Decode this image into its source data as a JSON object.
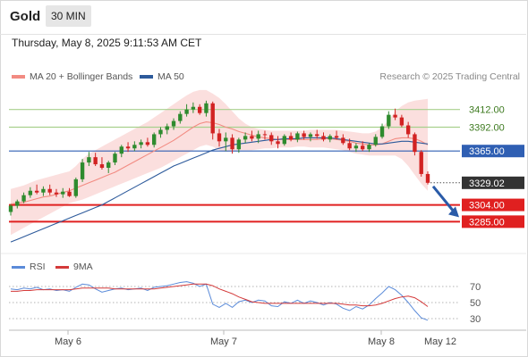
{
  "header": {
    "title": "Gold",
    "interval": "30 MIN"
  },
  "timestamp": "Thursday, May 8, 2025 9:11:53 AM CET",
  "legend": {
    "ma20_label": "MA 20 + Bollinger Bands",
    "ma50_label": "MA 50",
    "credit": "Research © 2025 Trading Central"
  },
  "rsi_legend": {
    "rsi_label": "RSI",
    "ma_label": "9MA"
  },
  "colors": {
    "ma20": "#f28b82",
    "band": "#fad2d0",
    "ma50": "#2d5a9b",
    "up": "#2e8b2e",
    "down": "#d22222",
    "support": "#e02020",
    "resistance": "#a8d08d",
    "pivot": "#2f5fb3",
    "rsi": "#5b8bd9",
    "rsi_ma": "#d43a3a"
  },
  "chart_data": [
    {
      "type": "candlestick",
      "title": "Gold",
      "interval": "30 MIN",
      "ylim": [
        3250,
        3440
      ],
      "x_ticks": [
        "May 6",
        "May 7",
        "May 8",
        "May 12"
      ],
      "candles": [
        [
          3296,
          3305,
          3292,
          3303
        ],
        [
          3303,
          3310,
          3300,
          3308
        ],
        [
          3308,
          3318,
          3306,
          3315
        ],
        [
          3315,
          3324,
          3312,
          3320
        ],
        [
          3320,
          3327,
          3316,
          3318
        ],
        [
          3318,
          3325,
          3314,
          3322
        ],
        [
          3322,
          3327,
          3315,
          3318
        ],
        [
          3318,
          3322,
          3313,
          3316
        ],
        [
          3316,
          3323,
          3312,
          3319
        ],
        [
          3319,
          3323,
          3313,
          3314
        ],
        [
          3314,
          3335,
          3312,
          3333
        ],
        [
          3333,
          3356,
          3330,
          3352
        ],
        [
          3352,
          3364,
          3348,
          3358
        ],
        [
          3358,
          3363,
          3348,
          3350
        ],
        [
          3350,
          3358,
          3344,
          3346
        ],
        [
          3346,
          3354,
          3340,
          3352
        ],
        [
          3352,
          3364,
          3349,
          3362
        ],
        [
          3362,
          3372,
          3358,
          3370
        ],
        [
          3370,
          3375,
          3364,
          3368
        ],
        [
          3368,
          3376,
          3365,
          3372
        ],
        [
          3372,
          3378,
          3368,
          3375
        ],
        [
          3375,
          3380,
          3370,
          3372
        ],
        [
          3372,
          3386,
          3369,
          3384
        ],
        [
          3384,
          3392,
          3380,
          3389
        ],
        [
          3389,
          3396,
          3384,
          3393
        ],
        [
          3393,
          3402,
          3389,
          3399
        ],
        [
          3399,
          3410,
          3396,
          3407
        ],
        [
          3407,
          3418,
          3404,
          3412
        ],
        [
          3412,
          3420,
          3408,
          3415
        ],
        [
          3415,
          3418,
          3406,
          3408
        ],
        [
          3408,
          3422,
          3404,
          3419
        ],
        [
          3419,
          3421,
          3378,
          3385
        ],
        [
          3385,
          3390,
          3370,
          3376
        ],
        [
          3376,
          3386,
          3365,
          3380
        ],
        [
          3380,
          3384,
          3362,
          3367
        ],
        [
          3367,
          3380,
          3363,
          3378
        ],
        [
          3378,
          3386,
          3374,
          3382
        ],
        [
          3382,
          3388,
          3376,
          3379
        ],
        [
          3379,
          3388,
          3374,
          3384
        ],
        [
          3384,
          3388,
          3378,
          3383
        ],
        [
          3383,
          3386,
          3372,
          3376
        ],
        [
          3376,
          3382,
          3368,
          3373
        ],
        [
          3373,
          3384,
          3371,
          3382
        ],
        [
          3382,
          3386,
          3376,
          3378
        ],
        [
          3378,
          3387,
          3375,
          3385
        ],
        [
          3385,
          3388,
          3378,
          3381
        ],
        [
          3381,
          3386,
          3376,
          3384
        ],
        [
          3384,
          3389,
          3379,
          3382
        ],
        [
          3382,
          3386,
          3376,
          3378
        ],
        [
          3378,
          3384,
          3375,
          3382
        ],
        [
          3382,
          3388,
          3378,
          3380
        ],
        [
          3380,
          3384,
          3372,
          3374
        ],
        [
          3374,
          3379,
          3366,
          3368
        ],
        [
          3368,
          3374,
          3364,
          3371
        ],
        [
          3371,
          3376,
          3365,
          3367
        ],
        [
          3367,
          3374,
          3364,
          3372
        ],
        [
          3372,
          3384,
          3370,
          3381
        ],
        [
          3381,
          3396,
          3379,
          3393
        ],
        [
          3393,
          3410,
          3390,
          3406
        ],
        [
          3406,
          3413,
          3400,
          3403
        ],
        [
          3403,
          3406,
          3392,
          3394
        ],
        [
          3394,
          3398,
          3380,
          3384
        ],
        [
          3384,
          3386,
          3360,
          3364
        ],
        [
          3364,
          3366,
          3336,
          3339
        ],
        [
          3339,
          3342,
          3327,
          3329
        ]
      ],
      "ma20": [
        3305,
        3306,
        3307,
        3309,
        3311,
        3313,
        3314,
        3316,
        3318,
        3320,
        3323,
        3326,
        3329,
        3332,
        3335,
        3338,
        3341,
        3345,
        3349,
        3353,
        3357,
        3361,
        3365,
        3369,
        3373,
        3377,
        3382,
        3387,
        3392,
        3396,
        3398,
        3397,
        3395,
        3392,
        3390,
        3387,
        3385,
        3383,
        3381,
        3380,
        3379,
        3378,
        3378,
        3378,
        3378,
        3378,
        3378,
        3378,
        3379,
        3379,
        3378,
        3377,
        3376,
        3374,
        3373,
        3372,
        3372,
        3373,
        3376,
        3379,
        3380,
        3380,
        3379,
        3376,
        3372
      ],
      "band_upper": [
        3322,
        3324,
        3326,
        3329,
        3332,
        3334,
        3336,
        3338,
        3340,
        3342,
        3348,
        3356,
        3362,
        3366,
        3370,
        3374,
        3378,
        3382,
        3386,
        3390,
        3394,
        3398,
        3403,
        3408,
        3413,
        3418,
        3423,
        3428,
        3432,
        3434,
        3434,
        3430,
        3425,
        3418,
        3410,
        3402,
        3396,
        3392,
        3390,
        3389,
        3388,
        3388,
        3388,
        3388,
        3388,
        3388,
        3389,
        3389,
        3389,
        3389,
        3389,
        3388,
        3387,
        3386,
        3385,
        3385,
        3387,
        3392,
        3400,
        3410,
        3416,
        3420,
        3422,
        3423,
        3424
      ],
      "band_lower": [
        3270,
        3274,
        3278,
        3282,
        3286,
        3290,
        3294,
        3298,
        3302,
        3306,
        3308,
        3310,
        3313,
        3316,
        3319,
        3322,
        3325,
        3328,
        3331,
        3334,
        3337,
        3340,
        3343,
        3346,
        3350,
        3354,
        3358,
        3362,
        3366,
        3370,
        3372,
        3370,
        3366,
        3364,
        3365,
        3366,
        3366,
        3366,
        3367,
        3368,
        3368,
        3369,
        3369,
        3369,
        3370,
        3370,
        3369,
        3369,
        3369,
        3368,
        3367,
        3366,
        3364,
        3362,
        3361,
        3360,
        3360,
        3360,
        3360,
        3360,
        3356,
        3348,
        3338,
        3328,
        3320
      ],
      "ma50": [
        3262,
        3265,
        3268,
        3271,
        3274,
        3277,
        3280,
        3283,
        3286,
        3289,
        3292,
        3295,
        3298,
        3301,
        3304,
        3308,
        3312,
        3316,
        3320,
        3324,
        3328,
        3332,
        3336,
        3340,
        3344,
        3348,
        3351,
        3354,
        3357,
        3360,
        3363,
        3366,
        3368,
        3370,
        3372,
        3373,
        3374,
        3375,
        3376,
        3377,
        3378,
        3378,
        3379,
        3379,
        3379,
        3380,
        3380,
        3380,
        3380,
        3380,
        3379,
        3378,
        3377,
        3376,
        3375,
        3374,
        3373,
        3373,
        3374,
        3375,
        3376,
        3376,
        3375,
        3374,
        3373
      ],
      "levels": [
        {
          "label": "3412.00",
          "value": 3412,
          "kind": "resistance"
        },
        {
          "label": "3392.00",
          "value": 3392,
          "kind": "resistance"
        },
        {
          "label": "3365.00",
          "value": 3365,
          "kind": "pivot"
        },
        {
          "label": "3329.02",
          "value": 3329.02,
          "kind": "last"
        },
        {
          "label": "3304.00",
          "value": 3304,
          "kind": "support"
        },
        {
          "label": "3285.00",
          "value": 3285,
          "kind": "support"
        }
      ],
      "arrow": {
        "from": 3325,
        "to": 3290
      }
    },
    {
      "type": "line",
      "title": "RSI",
      "ylim": [
        20,
        80
      ],
      "y_ticks": [
        "70",
        "50",
        "30"
      ],
      "series": [
        {
          "name": "RSI",
          "values": [
            67,
            66,
            68,
            67,
            69,
            66,
            67,
            65,
            66,
            64,
            69,
            73,
            72,
            67,
            63,
            65,
            67,
            68,
            66,
            67,
            68,
            65,
            69,
            70,
            71,
            73,
            75,
            76,
            74,
            70,
            73,
            48,
            44,
            49,
            44,
            51,
            53,
            50,
            53,
            52,
            46,
            45,
            51,
            49,
            53,
            49,
            52,
            50,
            47,
            50,
            48,
            43,
            40,
            45,
            42,
            47,
            55,
            62,
            70,
            66,
            59,
            50,
            40,
            31,
            28
          ]
        },
        {
          "name": "9MA",
          "values": [
            64,
            64,
            65,
            65,
            66,
            66,
            66,
            66,
            66,
            66,
            67,
            68,
            68,
            68,
            68,
            68,
            67,
            67,
            67,
            67,
            67,
            67,
            67,
            68,
            69,
            70,
            71,
            72,
            73,
            73,
            73,
            71,
            67,
            64,
            61,
            57,
            54,
            51,
            50,
            49,
            49,
            49,
            49,
            49,
            49,
            49,
            49,
            49,
            49,
            49,
            49,
            48,
            47,
            47,
            46,
            46,
            47,
            49,
            52,
            55,
            57,
            58,
            56,
            51,
            45
          ]
        }
      ]
    }
  ]
}
